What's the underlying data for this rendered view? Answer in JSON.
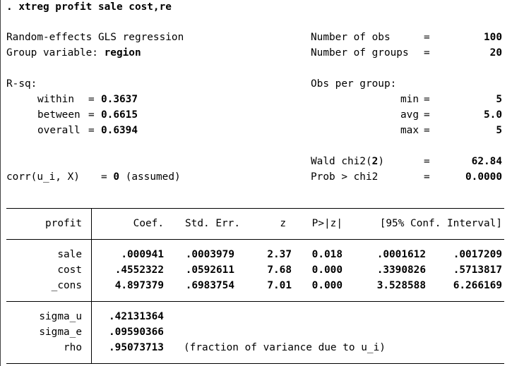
{
  "command": ". xtreg profit sale cost,re",
  "header": {
    "title": "Random-effects GLS regression",
    "group_var_label": "Group variable:",
    "group_var": "region",
    "nobs_label": "Number of obs",
    "nobs": "100",
    "ngroups_label": "Number of groups",
    "ngroups": "20",
    "eq": "="
  },
  "rsq": {
    "label": "R-sq:",
    "within_label": "within",
    "within": "0.3637",
    "between_label": "between",
    "between": "0.6615",
    "overall_label": "overall",
    "overall": "0.6394",
    "eq": "="
  },
  "obs_per_group": {
    "label": "Obs per group:",
    "min_label": "min",
    "min": "5",
    "avg_label": "avg",
    "avg": "5.0",
    "max_label": "max",
    "max": "5"
  },
  "tests": {
    "wald_label": "Wald chi2(",
    "wald_df": "2",
    "wald_close": ")",
    "wald": "62.84",
    "prob_label": "Prob > chi2",
    "prob": "0.0000",
    "corr_label": "corr(u_i, X)",
    "corr_eq": "=",
    "corr_zero": "0",
    "corr_note": "(assumed)"
  },
  "table": {
    "depvar": "profit",
    "headers": {
      "coef": "Coef.",
      "se": "Std. Err.",
      "z": "z",
      "p": "P>|z|",
      "ci": "[95% Conf. Interval]"
    },
    "rows": [
      {
        "name": "sale",
        "coef": ".000941",
        "se": ".0003979",
        "z": "2.37",
        "p": "0.018",
        "lo": ".0001612",
        "hi": ".0017209"
      },
      {
        "name": "cost",
        "coef": ".4552322",
        "se": ".0592611",
        "z": "7.68",
        "p": "0.000",
        "lo": ".3390826",
        "hi": ".5713817"
      },
      {
        "name": "_cons",
        "coef": "4.897379",
        "se": ".6983754",
        "z": "7.01",
        "p": "0.000",
        "lo": "3.528588",
        "hi": "6.266169"
      }
    ],
    "sigma_u_label": "sigma_u",
    "sigma_u": ".42131364",
    "sigma_e_label": "sigma_e",
    "sigma_e": ".09590366",
    "rho_label": "rho",
    "rho": ".95073713",
    "rho_note": "(fraction of variance due to u_i)"
  }
}
